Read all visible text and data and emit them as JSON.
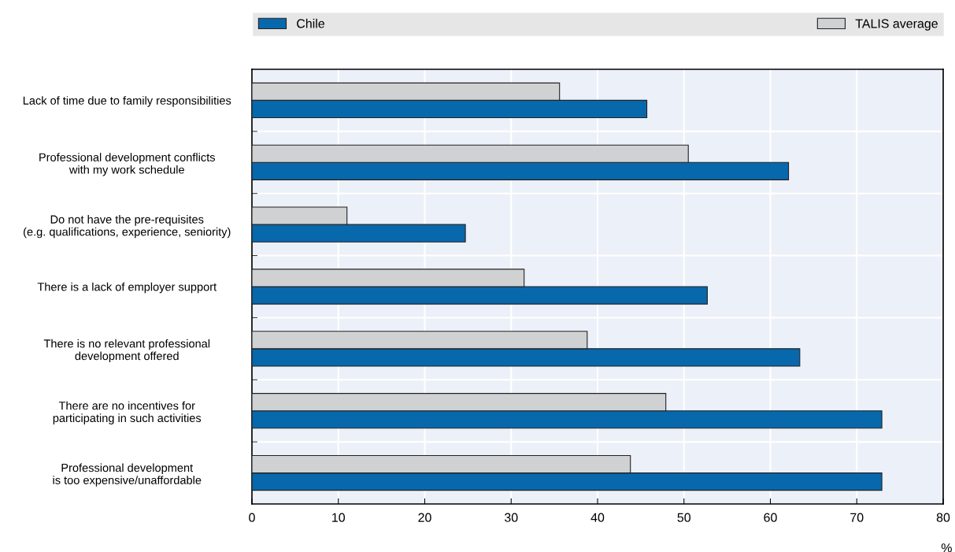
{
  "chart_data": {
    "type": "bar",
    "orientation": "horizontal",
    "xlabel": "%",
    "categories": [
      "Lack of time due to family responsibilities",
      "Professional development conflicts\nwith my work schedule",
      "Do not have the pre-requisites\n(e.g. qualifications, experience, seniority)",
      "There is a lack of employer support",
      "There is no relevant professional\ndevelopment offered",
      "There are no incentives for\nparticipating in such activities",
      "Professional development\nis too expensive/unaffordable"
    ],
    "series": [
      {
        "name": "Chile",
        "color": "#0868ac",
        "values": [
          45.7,
          62.1,
          24.7,
          52.7,
          63.4,
          72.9,
          72.9
        ]
      },
      {
        "name": "TALIS average",
        "color": "#d0d1d3",
        "values": [
          35.6,
          50.5,
          11.0,
          31.5,
          38.8,
          47.9,
          43.8
        ]
      }
    ],
    "xlim": [
      0,
      80
    ],
    "xticks": [
      0,
      10,
      20,
      30,
      40,
      50,
      60,
      70,
      80
    ],
    "grid": true,
    "legend": "top"
  }
}
